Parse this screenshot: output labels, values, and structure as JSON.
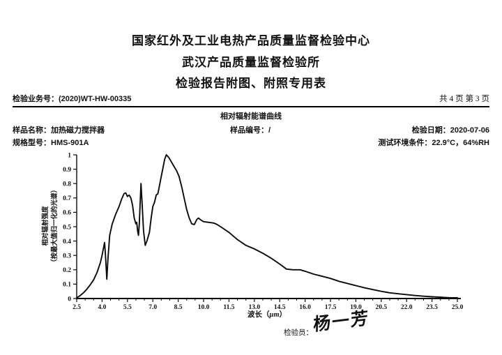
{
  "header": {
    "line1": "国家红外及工业电热产品质量监督检验中心",
    "line2": "武汉产品质量监督检验所",
    "line3": "检验报告附图、附照专用表"
  },
  "meta": {
    "report_no_label": "检验业务号：",
    "report_no": "(2020)WT-HW-00335",
    "page_info": "共 4 页 第 3 页"
  },
  "info": {
    "chart_title": "相对辐射能谱曲线",
    "sample_name_label": "样品名称：",
    "sample_name": "加热磁力搅拌器",
    "sample_no_label": "样品编号：",
    "sample_no": "/",
    "test_date_label": "检验日期：",
    "test_date": "2020-07-06",
    "model_label": "规格型号：",
    "model": "HMS-901A",
    "env_label": "测试环境条件：",
    "env_value": "22.9°C，64%RH"
  },
  "footer": {
    "inspector_label": "检验员：",
    "inspector_name": "杨一芳"
  },
  "chart_data": {
    "type": "line",
    "title": "相对辐射能谱曲线",
    "xlabel_text": "波长（",
    "xlabel_unit": "μm",
    "xlabel_close": "）",
    "ylabel_lines": [
      "相对辐射强度",
      "（按最大值归一化的光谱）"
    ],
    "xlim": [
      2.5,
      25.0
    ],
    "ylim": [
      0,
      1
    ],
    "x_ticks": [
      2.5,
      4.0,
      5.5,
      7.0,
      8.5,
      10.0,
      11.5,
      13.0,
      14.5,
      16.0,
      17.5,
      19.0,
      20.5,
      22.0,
      23.5,
      25.0
    ],
    "x_tick_labels": [
      "2.5",
      "4.0",
      "5.5",
      "7.0",
      "8.5",
      "10.0",
      "11.5",
      "13.0",
      "14.5",
      "16.0",
      "17.5",
      "19.0",
      "20.5",
      "22.0",
      "23.5",
      "25.0"
    ],
    "x_minor_step": 0.5,
    "y_ticks": [
      0,
      0.1,
      0.2,
      0.3,
      0.4,
      0.5,
      0.6,
      0.7,
      0.8,
      0.9,
      1.0
    ],
    "y_tick_labels": [
      "0",
      "0.1",
      "0.2",
      "0.3",
      "0.4",
      "0.5",
      "0.6",
      "0.7",
      "0.8",
      "0.9",
      "1"
    ],
    "grid": false,
    "line_color": "#0a0a0a",
    "points": [
      [
        2.5,
        0.005
      ],
      [
        2.7,
        0.02
      ],
      [
        2.9,
        0.04
      ],
      [
        3.1,
        0.065
      ],
      [
        3.3,
        0.095
      ],
      [
        3.5,
        0.13
      ],
      [
        3.7,
        0.18
      ],
      [
        3.9,
        0.25
      ],
      [
        4.0,
        0.3
      ],
      [
        4.1,
        0.36
      ],
      [
        4.15,
        0.39
      ],
      [
        4.2,
        0.3
      ],
      [
        4.28,
        0.135
      ],
      [
        4.35,
        0.28
      ],
      [
        4.45,
        0.44
      ],
      [
        4.6,
        0.52
      ],
      [
        4.8,
        0.585
      ],
      [
        5.0,
        0.64
      ],
      [
        5.15,
        0.69
      ],
      [
        5.3,
        0.73
      ],
      [
        5.4,
        0.735
      ],
      [
        5.5,
        0.71
      ],
      [
        5.6,
        0.72
      ],
      [
        5.7,
        0.7
      ],
      [
        5.8,
        0.65
      ],
      [
        5.9,
        0.56
      ],
      [
        6.0,
        0.52
      ],
      [
        6.05,
        0.53
      ],
      [
        6.1,
        0.47
      ],
      [
        6.15,
        0.44
      ],
      [
        6.2,
        0.52
      ],
      [
        6.25,
        0.66
      ],
      [
        6.3,
        0.8
      ],
      [
        6.35,
        0.7
      ],
      [
        6.45,
        0.47
      ],
      [
        6.55,
        0.37
      ],
      [
        6.65,
        0.4
      ],
      [
        6.8,
        0.46
      ],
      [
        6.9,
        0.56
      ],
      [
        7.0,
        0.64
      ],
      [
        7.1,
        0.67
      ],
      [
        7.2,
        0.72
      ],
      [
        7.3,
        0.73
      ],
      [
        7.4,
        0.79
      ],
      [
        7.5,
        0.85
      ],
      [
        7.6,
        0.91
      ],
      [
        7.7,
        0.97
      ],
      [
        7.8,
        1.0
      ],
      [
        7.95,
        0.98
      ],
      [
        8.1,
        0.95
      ],
      [
        8.25,
        0.92
      ],
      [
        8.4,
        0.89
      ],
      [
        8.55,
        0.85
      ],
      [
        8.7,
        0.78
      ],
      [
        8.85,
        0.7
      ],
      [
        9.0,
        0.62
      ],
      [
        9.15,
        0.56
      ],
      [
        9.3,
        0.52
      ],
      [
        9.45,
        0.515
      ],
      [
        9.6,
        0.55
      ],
      [
        9.7,
        0.56
      ],
      [
        9.85,
        0.545
      ],
      [
        10.0,
        0.535
      ],
      [
        10.3,
        0.53
      ],
      [
        10.6,
        0.525
      ],
      [
        10.8,
        0.515
      ],
      [
        11.0,
        0.5
      ],
      [
        11.5,
        0.46
      ],
      [
        12.0,
        0.41
      ],
      [
        12.5,
        0.37
      ],
      [
        13.0,
        0.345
      ],
      [
        13.5,
        0.315
      ],
      [
        14.0,
        0.28
      ],
      [
        14.5,
        0.24
      ],
      [
        14.9,
        0.205
      ],
      [
        15.3,
        0.2
      ],
      [
        15.7,
        0.2
      ],
      [
        16.0,
        0.19
      ],
      [
        16.5,
        0.17
      ],
      [
        17.0,
        0.155
      ],
      [
        17.5,
        0.14
      ],
      [
        18.0,
        0.12
      ],
      [
        18.5,
        0.105
      ],
      [
        19.0,
        0.09
      ],
      [
        19.5,
        0.075
      ],
      [
        20.0,
        0.062
      ],
      [
        20.5,
        0.05
      ],
      [
        21.0,
        0.04
      ],
      [
        21.5,
        0.033
      ],
      [
        22.0,
        0.027
      ],
      [
        22.5,
        0.021
      ],
      [
        23.0,
        0.016
      ],
      [
        23.5,
        0.012
      ],
      [
        24.0,
        0.009
      ],
      [
        24.5,
        0.006
      ],
      [
        25.0,
        0.005
      ]
    ]
  }
}
